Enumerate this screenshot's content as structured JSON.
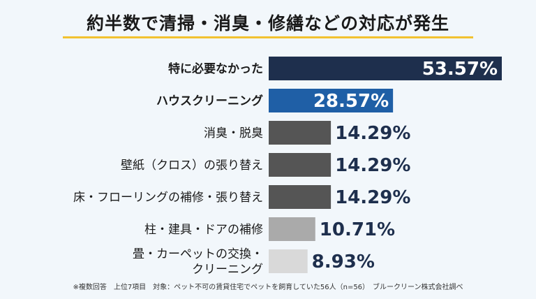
{
  "chart_data": {
    "type": "bar",
    "orientation": "horizontal",
    "title": "約半数で清掃・消臭・修繕などの対応が発生",
    "categories": [
      "特に必要なかった",
      "ハウスクリーニング",
      "消臭・脱臭",
      "壁紙（クロス）の張り替え",
      "床・フローリングの補修・張り替え",
      "柱・建具・ドアの補修",
      "畳・カーペットの交換・\nクリーニング"
    ],
    "values": [
      53.57,
      28.57,
      14.29,
      14.29,
      14.29,
      10.71,
      8.93
    ],
    "value_labels": [
      "53.57%",
      "28.57%",
      "14.29%",
      "14.29%",
      "14.29%",
      "10.71%",
      "8.93%"
    ],
    "bold_categories": [
      true,
      true,
      false,
      false,
      false,
      false,
      false
    ],
    "bar_colors": [
      "#1e2f4d",
      "#1f5fa6",
      "#555555",
      "#555555",
      "#555555",
      "#aaaaaa",
      "#d9d9d9"
    ],
    "value_label_inside": [
      true,
      true,
      false,
      false,
      false,
      false,
      false
    ],
    "xlim": [
      0,
      53.57
    ],
    "grid": false,
    "legend": "none",
    "footnote": "※複数回答　上位7項目　対象：ペット不可の賃貸住宅でペットを飼育していた56人（n=56）　ブルークリーン株式会社調べ"
  }
}
